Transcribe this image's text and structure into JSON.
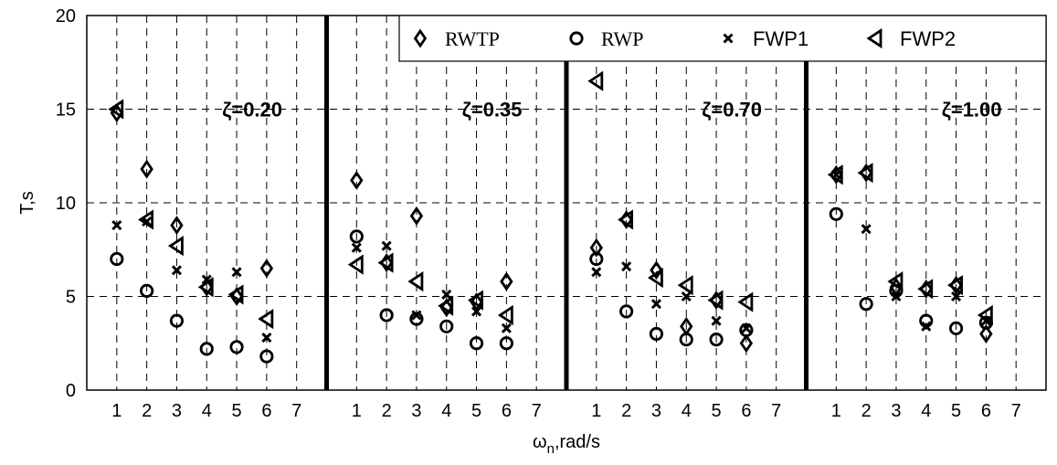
{
  "chart_data": {
    "type": "scatter",
    "xlabel_main": "ω",
    "xlabel_sub": "n",
    "xlabel_rest": ",rad/s",
    "ylabel": "T,s",
    "ylim": [
      0,
      20
    ],
    "yticks": [
      0,
      5,
      10,
      15,
      20
    ],
    "xticks": [
      1,
      2,
      3,
      4,
      5,
      6,
      7
    ],
    "grid": true,
    "legend_position": "top-right",
    "series": [
      {
        "name": "RWTP",
        "marker": "diamond",
        "font": "serif"
      },
      {
        "name": "RWP",
        "marker": "circle",
        "font": "serif"
      },
      {
        "name": "FWP1",
        "marker": "x",
        "font": "sans"
      },
      {
        "name": "FWP2",
        "marker": "triangle-left",
        "font": "sans"
      }
    ],
    "panels": [
      {
        "label": "ζ=0.20",
        "RWTP": [
          [
            1,
            14.8
          ],
          [
            2,
            11.8
          ],
          [
            3,
            8.8
          ],
          [
            4,
            5.5
          ],
          [
            5,
            5.0
          ],
          [
            6,
            6.5
          ]
        ],
        "RWP": [
          [
            1,
            7.0
          ],
          [
            2,
            5.3
          ],
          [
            3,
            3.7
          ],
          [
            4,
            2.2
          ],
          [
            5,
            2.3
          ],
          [
            6,
            1.8
          ]
        ],
        "FWP1": [
          [
            1,
            8.8
          ],
          [
            2,
            9.0
          ],
          [
            3,
            6.4
          ],
          [
            4,
            5.9
          ],
          [
            5,
            6.3
          ],
          [
            6,
            2.8
          ]
        ],
        "FWP2": [
          [
            1,
            15.0
          ],
          [
            2,
            9.1
          ],
          [
            3,
            7.7
          ],
          [
            4,
            5.5
          ],
          [
            5,
            5.1
          ],
          [
            6,
            3.8
          ]
        ]
      },
      {
        "label": "ζ=0.35",
        "RWTP": [
          [
            1,
            11.2
          ],
          [
            2,
            6.8
          ],
          [
            3,
            9.3
          ],
          [
            4,
            4.4
          ],
          [
            5,
            4.7
          ],
          [
            6,
            5.8
          ]
        ],
        "RWP": [
          [
            1,
            8.2
          ],
          [
            2,
            4.0
          ],
          [
            3,
            3.8
          ],
          [
            4,
            3.4
          ],
          [
            5,
            2.5
          ],
          [
            6,
            2.5
          ]
        ],
        "FWP1": [
          [
            1,
            7.6
          ],
          [
            2,
            7.7
          ],
          [
            3,
            4.0
          ],
          [
            4,
            5.1
          ],
          [
            5,
            4.2
          ],
          [
            6,
            3.3
          ]
        ],
        "FWP2": [
          [
            1,
            6.7
          ],
          [
            2,
            6.8
          ],
          [
            3,
            5.8
          ],
          [
            4,
            4.5
          ],
          [
            5,
            4.8
          ],
          [
            6,
            4.0
          ]
        ]
      },
      {
        "label": "ζ=0.70",
        "RWTP": [
          [
            1,
            7.6
          ],
          [
            2,
            9.1
          ],
          [
            3,
            6.4
          ],
          [
            4,
            3.4
          ],
          [
            5,
            4.8
          ],
          [
            6,
            2.5
          ]
        ],
        "RWP": [
          [
            1,
            7.0
          ],
          [
            2,
            4.2
          ],
          [
            3,
            3.0
          ],
          [
            4,
            2.7
          ],
          [
            5,
            2.7
          ],
          [
            6,
            3.2
          ]
        ],
        "FWP1": [
          [
            1,
            6.3
          ],
          [
            2,
            6.6
          ],
          [
            3,
            4.6
          ],
          [
            4,
            5.0
          ],
          [
            5,
            3.7
          ],
          [
            6,
            3.3
          ]
        ],
        "FWP2": [
          [
            1,
            16.5
          ],
          [
            2,
            9.1
          ],
          [
            3,
            6.0
          ],
          [
            4,
            5.6
          ],
          [
            5,
            4.8
          ],
          [
            6,
            4.7
          ]
        ]
      },
      {
        "label": "ζ=1.00",
        "RWTP": [
          [
            1,
            11.5
          ],
          [
            2,
            11.6
          ],
          [
            3,
            5.5
          ],
          [
            4,
            5.4
          ],
          [
            5,
            5.6
          ],
          [
            6,
            3.0
          ]
        ],
        "RWP": [
          [
            1,
            9.4
          ],
          [
            2,
            4.6
          ],
          [
            3,
            5.3
          ],
          [
            4,
            3.7
          ],
          [
            5,
            3.3
          ],
          [
            6,
            3.6
          ]
        ],
        "FWP1": [
          [
            1,
            11.5
          ],
          [
            2,
            8.6
          ],
          [
            3,
            5.0
          ],
          [
            4,
            3.4
          ],
          [
            5,
            5.0
          ],
          [
            6,
            3.7
          ]
        ],
        "FWP2": [
          [
            1,
            11.5
          ],
          [
            2,
            11.6
          ],
          [
            3,
            5.8
          ],
          [
            4,
            5.4
          ],
          [
            5,
            5.6
          ],
          [
            6,
            4.0
          ]
        ]
      }
    ]
  }
}
